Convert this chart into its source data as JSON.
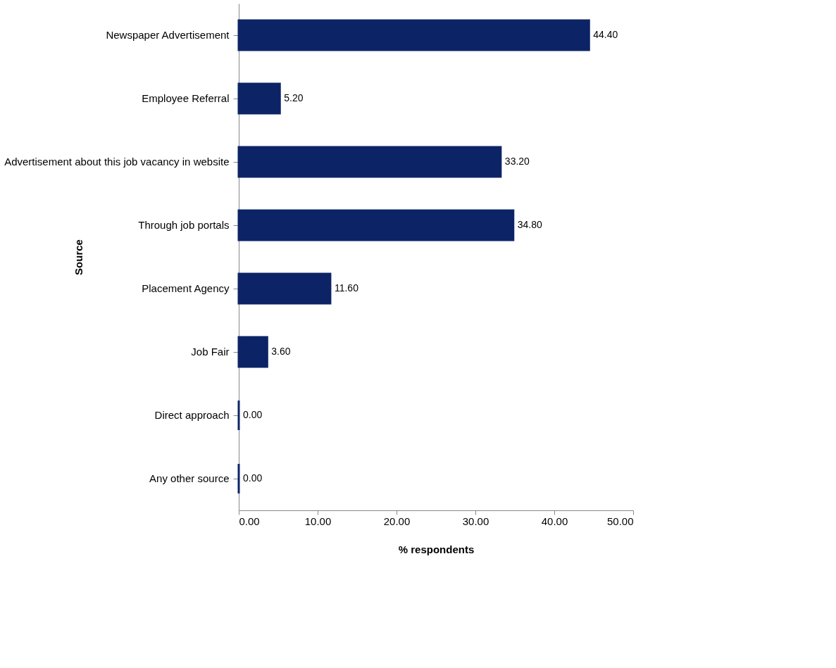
{
  "chart_data": {
    "type": "bar",
    "orientation": "horizontal",
    "xlabel": "% respondents",
    "ylabel": "Source",
    "categories": [
      "Newspaper Advertisement",
      "Employee Referral",
      "Advertisement about this job vacancy in website",
      "Through job portals",
      "Placement Agency",
      "Job Fair",
      "Direct approach",
      "Any other source"
    ],
    "values": [
      44.4,
      5.2,
      33.2,
      34.8,
      11.6,
      3.6,
      0,
      0
    ],
    "value_labels": [
      "44.40",
      "5.20",
      "33.20",
      "34.80",
      "11.60",
      "3.60",
      "0.00",
      "0.00"
    ],
    "color": "#0c2466",
    "xlim": [
      0,
      50
    ],
    "xticks": [
      {
        "value": 0,
        "label": "0.00"
      },
      {
        "value": 10,
        "label": "10.00"
      },
      {
        "value": 20,
        "label": "20.00"
      },
      {
        "value": 30,
        "label": "30.00"
      },
      {
        "value": 40,
        "label": "40.00"
      },
      {
        "value": 50,
        "label": "50.00"
      }
    ],
    "grid": false
  }
}
